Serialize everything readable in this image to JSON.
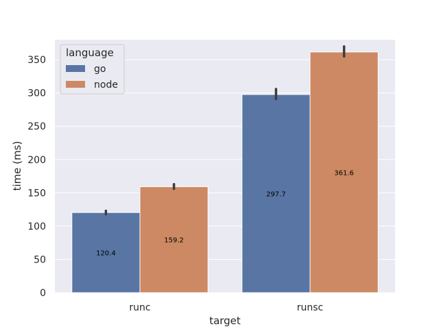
{
  "chart_data": {
    "type": "bar",
    "categories": [
      "runc",
      "runsc"
    ],
    "xlabel": "target",
    "ylabel": "time (ms)",
    "ylim": [
      0,
      380
    ],
    "yticks": [
      0,
      50,
      100,
      150,
      200,
      250,
      300,
      350
    ],
    "grid": true,
    "legend": {
      "title": "language",
      "placement": "top-left"
    },
    "series": [
      {
        "name": "go",
        "color": "#5875a4",
        "values": [
          120.4,
          297.7
        ],
        "labels": [
          "120.4",
          "297.7"
        ],
        "error": [
          [
            118,
            123
          ],
          [
            291,
            306
          ]
        ]
      },
      {
        "name": "node",
        "color": "#cc8963",
        "values": [
          159.2,
          361.6
        ],
        "labels": [
          "159.2",
          "361.6"
        ],
        "error": [
          [
            156,
            163
          ],
          [
            355,
            370
          ]
        ]
      }
    ]
  }
}
